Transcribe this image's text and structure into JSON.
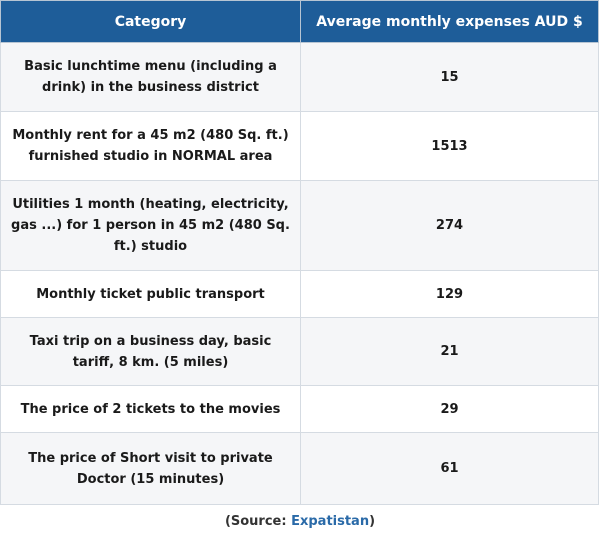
{
  "table": {
    "headers": [
      "Category",
      "Average monthly expenses AUD $"
    ],
    "rows": [
      {
        "category": "Basic lunchtime menu (including a drink) in the business district",
        "value": "15"
      },
      {
        "category": "Monthly rent for a 45 m2 (480 Sq. ft.) furnished studio in NORMAL area",
        "value": "1513"
      },
      {
        "category": "Utilities 1 month (heating, electricity, gas ...) for 1 person in 45 m2 (480 Sq. ft.) studio",
        "value": "274"
      },
      {
        "category": "Monthly ticket public transport",
        "value": "129"
      },
      {
        "category": "Taxi trip on a business day, basic tariff, 8 km. (5 miles)",
        "value": "21"
      },
      {
        "category": "The price of 2 tickets to the movies",
        "value": "29"
      },
      {
        "category": "The price of Short visit to private Doctor (15 minutes)",
        "value": "61"
      }
    ]
  },
  "source": {
    "prefix": "(Source: ",
    "link": "Expatistan",
    "suffix": ")"
  },
  "colors": {
    "header_bg": "#1e5d99",
    "header_text": "#ffffff",
    "link": "#2a6aa8"
  }
}
